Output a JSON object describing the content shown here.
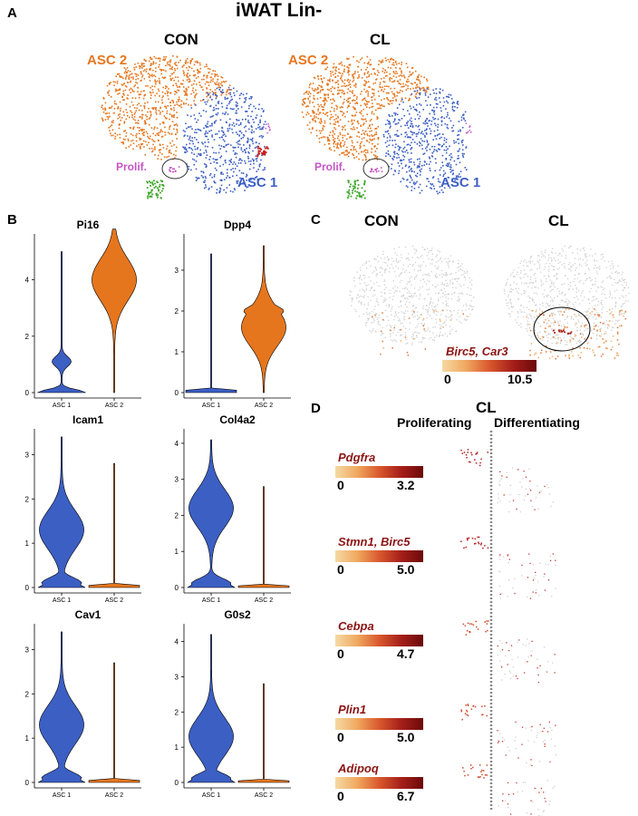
{
  "panel_a": {
    "letter": "A",
    "title": "iWAT Lin-",
    "con_label": "CON",
    "cl_label": "CL",
    "asc2_label": "ASC 2",
    "asc1_label": "ASC  1",
    "prolif_label": "Prolif."
  },
  "panel_b": {
    "letter": "B",
    "tick_asc1": "ASC 1",
    "tick_asc2": "ASC 2"
  },
  "panel_c": {
    "letter": "C",
    "con_label": "CON",
    "cl_label": "CL",
    "legend_gene": "Birc5, Car3",
    "legend_min": "0",
    "legend_max": "10.5"
  },
  "panel_d": {
    "letter": "D",
    "title": "CL",
    "proliferating": "Proliferating",
    "differentiating": "Differentiating",
    "legends": [
      {
        "gene": "Pdgfra",
        "min": "0",
        "max": "3.2"
      },
      {
        "gene": "Stmn1, Birc5",
        "min": "0",
        "max": "5.0"
      },
      {
        "gene": "Cebpa",
        "min": "0",
        "max": "4.7"
      },
      {
        "gene": "Plin1",
        "min": "0",
        "max": "5.0"
      },
      {
        "gene": "Adipoq",
        "min": "0",
        "max": "6.7"
      }
    ]
  },
  "colors": {
    "asc1": "#3c5fc4",
    "asc2": "#e6761e",
    "prolif": "#c455c4",
    "green": "#3fa82a",
    "red": "#c81e1e"
  },
  "chart_data": [
    {
      "type": "violin",
      "title": "Pi16",
      "categories": [
        "ASC 1",
        "ASC 2"
      ],
      "ylim": [
        0,
        5.5
      ],
      "yticks": [
        0,
        2,
        4
      ],
      "series": [
        {
          "name": "ASC 1",
          "peak": 0.1,
          "secondary": 1.1,
          "max": 5.0
        },
        {
          "name": "ASC 2",
          "peak": 4.0,
          "min": 0.0,
          "max": 5.8
        }
      ]
    },
    {
      "type": "violin",
      "title": "Dpp4",
      "categories": [
        "ASC 1",
        "ASC 2"
      ],
      "ylim": [
        0,
        3.8
      ],
      "yticks": [
        0,
        1,
        2,
        3
      ],
      "series": [
        {
          "name": "ASC 1",
          "peak": 0.0,
          "max": 3.4
        },
        {
          "name": "ASC 2",
          "peak": 1.6,
          "secondary": 2.0,
          "max": 3.6
        }
      ]
    },
    {
      "type": "violin",
      "title": "Icam1",
      "categories": [
        "ASC 1",
        "ASC 2"
      ],
      "ylim": [
        0,
        3.5
      ],
      "yticks": [
        0,
        1,
        2,
        3
      ],
      "series": [
        {
          "name": "ASC 1",
          "peak": 1.3,
          "secondary": 0.1,
          "max": 3.4
        },
        {
          "name": "ASC 2",
          "peak": 0.0,
          "max": 2.8
        }
      ]
    },
    {
      "type": "violin",
      "title": "Col4a2",
      "categories": [
        "ASC 1",
        "ASC 2"
      ],
      "ylim": [
        0,
        4.3
      ],
      "yticks": [
        0,
        1,
        2,
        3,
        4
      ],
      "series": [
        {
          "name": "ASC 1",
          "peak": 2.2,
          "secondary": 0.1,
          "max": 4.1
        },
        {
          "name": "ASC 2",
          "peak": 0.0,
          "max": 2.8
        }
      ]
    },
    {
      "type": "violin",
      "title": "Cav1",
      "categories": [
        "ASC 1",
        "ASC 2"
      ],
      "ylim": [
        0,
        3.5
      ],
      "yticks": [
        0,
        1,
        2,
        3
      ],
      "series": [
        {
          "name": "ASC 1",
          "peak": 1.3,
          "secondary": 0.1,
          "max": 3.4
        },
        {
          "name": "ASC 2",
          "peak": 0.0,
          "max": 2.7
        }
      ]
    },
    {
      "type": "violin",
      "title": "G0s2",
      "categories": [
        "ASC 1",
        "ASC 2"
      ],
      "ylim": [
        0,
        4.4
      ],
      "yticks": [
        0,
        1,
        2,
        3,
        4
      ],
      "series": [
        {
          "name": "ASC 1",
          "peak": 1.3,
          "secondary": 0.1,
          "max": 4.2
        },
        {
          "name": "ASC 2",
          "peak": 0.0,
          "max": 2.8
        }
      ]
    }
  ]
}
